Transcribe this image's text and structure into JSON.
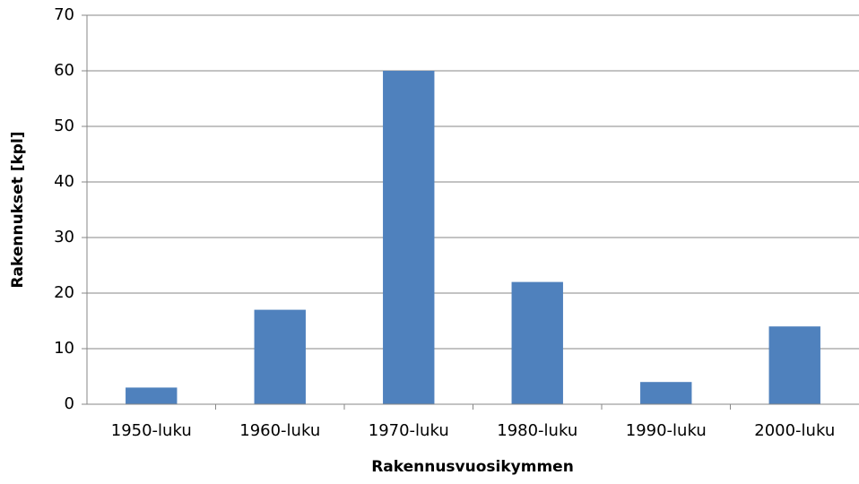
{
  "chart_data": {
    "type": "bar",
    "x_label": "Rakennusvuosikymmen",
    "y_label": "Rakennukset [kpl]",
    "categories": [
      "1950-luku",
      "1960-luku",
      "1970-luku",
      "1980-luku",
      "1990-luku",
      "2000-luku"
    ],
    "values": [
      3,
      17,
      60,
      22,
      4,
      14
    ],
    "color": "#4f81bd",
    "ylim": [
      0,
      70
    ],
    "yticks": [
      0,
      10,
      20,
      30,
      40,
      50,
      60,
      70
    ],
    "grid": true
  }
}
